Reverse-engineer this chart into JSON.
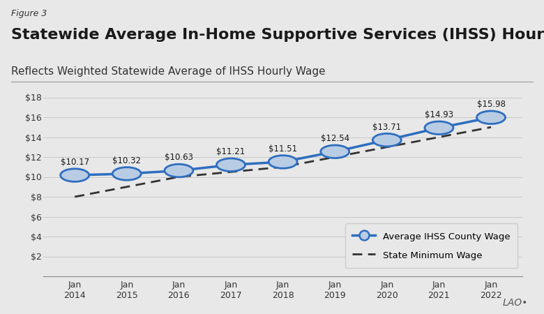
{
  "figure_label": "Figure 3",
  "title": "Statewide Average In-Home Supportive Services (IHSS) Hourly Wage",
  "subtitle": "Reflects Weighted Statewide Average of IHSS Hourly Wage",
  "years": [
    2014,
    2015,
    2016,
    2017,
    2018,
    2019,
    2020,
    2021,
    2022
  ],
  "ihss_wages": [
    10.17,
    10.32,
    10.63,
    11.21,
    11.51,
    12.54,
    13.71,
    14.93,
    15.98
  ],
  "min_wages": [
    8.0,
    9.0,
    10.0,
    10.5,
    11.0,
    12.0,
    13.0,
    14.0,
    15.0
  ],
  "x_labels": [
    "Jan\n2014",
    "Jan\n2015",
    "Jan\n2016",
    "Jan\n2017",
    "Jan\n2018",
    "Jan\n2019",
    "Jan\n2020",
    "Jan\n2021",
    "Jan\n2022"
  ],
  "ylim": [
    0,
    18
  ],
  "yticks": [
    0,
    2,
    4,
    6,
    8,
    10,
    12,
    14,
    16,
    18
  ],
  "line_color": "#2E6EBF",
  "marker_face_color": "#B8CCE4",
  "marker_edge_color": "#2E6EBF",
  "min_wage_color": "#333333",
  "background_color": "#E8E8E8",
  "plot_bg_color": "#E8E8E8",
  "legend_ihss": "Average IHSS County Wage",
  "legend_min": "State Minimum Wage",
  "watermark": "LAO•",
  "title_fontsize": 16,
  "subtitle_fontsize": 11,
  "label_fontsize": 9,
  "tick_fontsize": 9
}
